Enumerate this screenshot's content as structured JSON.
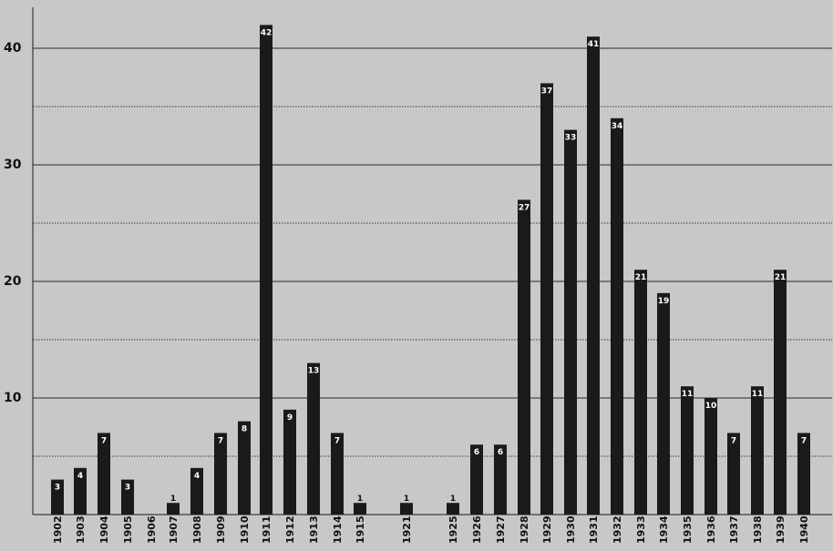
{
  "chart_data": {
    "type": "bar",
    "title": "",
    "xlabel": "",
    "ylabel": "",
    "ylim": [
      0,
      42
    ],
    "yticks": [
      10,
      20,
      30,
      40
    ],
    "grid": {
      "solid": [
        10,
        20,
        30,
        40
      ],
      "dotted": [
        5,
        15,
        25,
        35
      ]
    },
    "categories": [
      "1902",
      "1903",
      "1904",
      "1905",
      "1906",
      "1907",
      "1908",
      "1909",
      "1910",
      "1911",
      "1912",
      "1913",
      "1914",
      "1915",
      "1921",
      "1925",
      "1926",
      "1927",
      "1928",
      "1929",
      "1930",
      "1931",
      "1932",
      "1933",
      "1934",
      "1935",
      "1936",
      "1937",
      "1938",
      "1939",
      "1940"
    ],
    "values": [
      3,
      4,
      7,
      3,
      null,
      1,
      4,
      7,
      8,
      42,
      9,
      13,
      7,
      1,
      1,
      1,
      6,
      6,
      27,
      37,
      33,
      41,
      34,
      21,
      19,
      11,
      10,
      7,
      11,
      21,
      7
    ],
    "bar_color": "#1a1a1a",
    "background_color": "#c8c8c8",
    "label_color_inside": "#ffffff",
    "label_color_outside": "#111111"
  }
}
